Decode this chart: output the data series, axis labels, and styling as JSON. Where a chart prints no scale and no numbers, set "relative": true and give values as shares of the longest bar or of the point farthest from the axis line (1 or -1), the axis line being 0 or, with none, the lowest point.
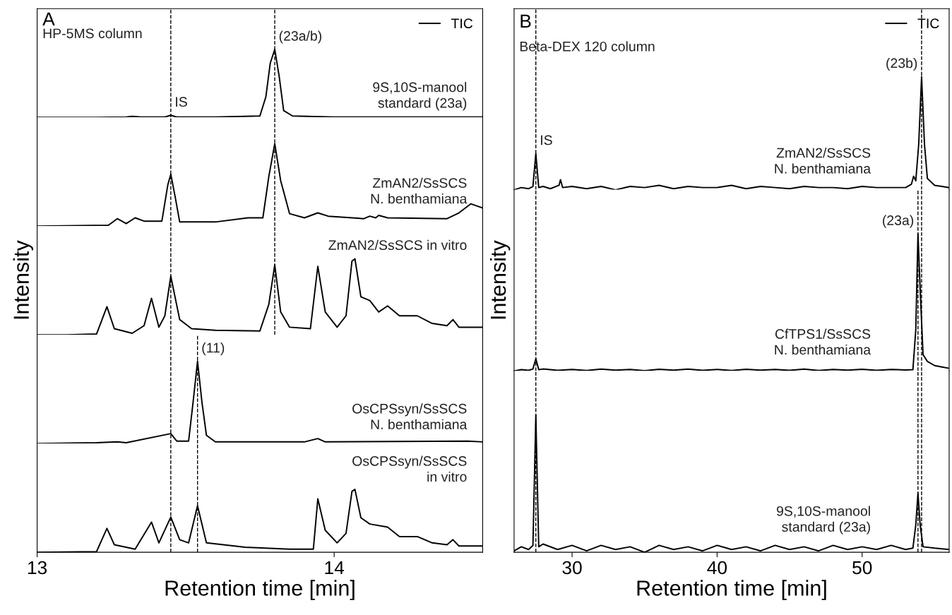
{
  "chart_data": [
    {
      "type": "line",
      "title": "A",
      "subtitle": "HP-5MS column",
      "relative": true,
      "xlim": [
        13.0,
        14.5
      ],
      "xticks": [
        13,
        14
      ],
      "tick_labels": false,
      "legend": "top right",
      "line_style": "solid",
      "x": [
        13.0,
        13.2,
        13.3,
        13.32,
        13.35,
        13.43,
        13.45,
        13.47,
        13.6,
        13.75,
        13.77,
        13.785,
        13.8,
        13.815,
        13.83,
        13.86,
        14.0,
        14.5
      ],
      "series": [
        {
          "name": "TIC",
          "color": "#000000",
          "values": [
            0,
            0,
            0.005,
            0.015,
            0.005,
            0.005,
            0.03,
            0.005,
            0.005,
            0.02,
            0.3,
            0.8,
            1,
            0.6,
            0.1,
            0.02,
            0.005,
            0.005
          ]
        }
      ],
      "ref_lines": [
        {
          "axis": "x",
          "value": 13.45,
          "color": "#000000",
          "line_style": "dashed"
        },
        {
          "axis": "x",
          "value": 13.8,
          "color": "#000000",
          "line_style": "dashed"
        }
      ],
      "annotations": [
        "9S,10S-manool\nstandard (23a)",
        {
          "text": "IS",
          "x": 13.45,
          "y": 0.03
        },
        {
          "text": "(23a/b)",
          "x": 13.8,
          "y": 1
        }
      ]
    },
    {
      "type": "line",
      "relative": true,
      "xlim": [
        13.0,
        14.5
      ],
      "xticks": [
        13,
        14
      ],
      "tick_labels": false,
      "line_style": "solid",
      "x": [
        13.0,
        13.24,
        13.27,
        13.3,
        13.33,
        13.36,
        13.42,
        13.44,
        13.45,
        13.465,
        13.48,
        13.6,
        13.71,
        13.76,
        13.78,
        13.8,
        13.82,
        13.85,
        13.9,
        13.945,
        13.98,
        14.1,
        14.12,
        14.14,
        14.15,
        14.18,
        14.38,
        14.42,
        14.46,
        14.5
      ],
      "series": [
        {
          "color": "#000000",
          "values": [
            0,
            0.01,
            0.09,
            0.03,
            0.1,
            0.06,
            0.06,
            0.5,
            0.63,
            0.35,
            0.05,
            0.05,
            0.1,
            0.1,
            0.6,
            1,
            0.55,
            0.15,
            0.1,
            0.16,
            0.12,
            0.09,
            0.12,
            0.1,
            0.13,
            0.1,
            0.09,
            0.16,
            0.27,
            0.22
          ]
        }
      ],
      "ref_lines": [
        {
          "axis": "x",
          "value": 13.45,
          "color": "#000000",
          "line_style": "dashed"
        },
        {
          "axis": "x",
          "value": 13.8,
          "color": "#000000",
          "line_style": "dashed"
        }
      ],
      "annotations": [
        "ZmAN2/SsSCS\nN. benthamiana"
      ]
    },
    {
      "type": "line",
      "relative": true,
      "xlim": [
        13.0,
        14.5
      ],
      "xticks": [
        13,
        14
      ],
      "tick_labels": false,
      "ylabel": "Intensity",
      "line_style": "solid",
      "x": [
        13.0,
        13.1,
        13.2,
        13.235,
        13.26,
        13.32,
        13.36,
        13.385,
        13.41,
        13.43,
        13.45,
        13.48,
        13.52,
        13.6,
        13.75,
        13.78,
        13.8,
        13.82,
        13.85,
        13.92,
        13.945,
        13.97,
        14.01,
        14.04,
        14.06,
        14.07,
        14.09,
        14.12,
        14.15,
        14.18,
        14.22,
        14.28,
        14.33,
        14.38,
        14.4,
        14.42,
        14.5
      ],
      "series": [
        {
          "color": "#000000",
          "values": [
            0,
            0,
            0.01,
            0.37,
            0.08,
            0.02,
            0.12,
            0.48,
            0.1,
            0.25,
            0.77,
            0.2,
            0.08,
            0.06,
            0.05,
            0.4,
            0.92,
            0.3,
            0.1,
            0.08,
            0.9,
            0.3,
            0.1,
            0.25,
            0.97,
            1,
            0.5,
            0.45,
            0.3,
            0.38,
            0.25,
            0.25,
            0.15,
            0.12,
            0.2,
            0.1,
            0.1
          ]
        }
      ],
      "ref_lines": [
        {
          "axis": "x",
          "value": 13.45,
          "color": "#000000",
          "line_style": "dashed"
        },
        {
          "axis": "x",
          "value": 13.8,
          "color": "#000000",
          "line_style": "dashed"
        }
      ],
      "annotations": [
        "ZmAN2/SsSCS in vitro"
      ]
    },
    {
      "type": "line",
      "relative": true,
      "xlim": [
        13.0,
        14.5
      ],
      "xticks": [
        13,
        14
      ],
      "tick_labels": false,
      "line_style": "solid",
      "x": [
        13.0,
        13.2,
        13.27,
        13.3,
        13.45,
        13.47,
        13.51,
        13.525,
        13.54,
        13.555,
        13.57,
        13.6,
        13.9,
        13.945,
        13.97,
        14.45,
        14.5
      ],
      "series": [
        {
          "color": "#000000",
          "values": [
            0,
            0.01,
            0.02,
            0.01,
            0.12,
            0.03,
            0.03,
            0.5,
            1,
            0.5,
            0.1,
            0.02,
            0.02,
            0.06,
            0.02,
            0.03,
            0.02
          ]
        }
      ],
      "ref_lines": [
        {
          "axis": "x",
          "value": 13.45,
          "color": "#000000",
          "line_style": "dashed"
        },
        {
          "axis": "x",
          "value": 13.54,
          "color": "#000000",
          "line_style": "dashed"
        }
      ],
      "annotations": [
        "OsCPSsyn/SsSCS\nN. benthamiana",
        {
          "text": "(11)",
          "x": 13.54,
          "y": 1
        }
      ]
    },
    {
      "type": "line",
      "relative": true,
      "xlim": [
        13.0,
        14.5
      ],
      "xticks": [
        13,
        14
      ],
      "tick_labels": "x",
      "xlabel": "Retention time [min]",
      "line_style": "solid",
      "x": [
        13.0,
        13.2,
        13.235,
        13.26,
        13.33,
        13.385,
        13.41,
        13.45,
        13.48,
        13.51,
        13.54,
        13.57,
        13.7,
        13.85,
        13.93,
        13.945,
        13.97,
        14.01,
        14.04,
        14.06,
        14.07,
        14.09,
        14.12,
        14.18,
        14.22,
        14.28,
        14.33,
        14.38,
        14.4,
        14.42,
        14.5
      ],
      "series": [
        {
          "color": "#000000",
          "values": [
            0,
            0.01,
            0.38,
            0.12,
            0.05,
            0.48,
            0.15,
            0.56,
            0.2,
            0.15,
            0.74,
            0.15,
            0.08,
            0.05,
            0.05,
            0.85,
            0.35,
            0.15,
            0.3,
            0.97,
            1,
            0.55,
            0.45,
            0.4,
            0.25,
            0.25,
            0.15,
            0.12,
            0.2,
            0.1,
            0.1
          ]
        }
      ],
      "ref_lines": [
        {
          "axis": "x",
          "value": 13.45,
          "color": "#000000",
          "line_style": "dashed"
        },
        {
          "axis": "x",
          "value": 13.54,
          "color": "#000000",
          "line_style": "dashed"
        }
      ],
      "annotations": [
        "OsCPSsyn/SsSCS\n in vitro"
      ]
    },
    {
      "type": "line",
      "title": "B",
      "subtitle": "Beta-DEX 120 column",
      "relative": true,
      "xlim": [
        26,
        56
      ],
      "xticks": [
        30,
        40,
        50
      ],
      "tick_labels": false,
      "legend": "top right",
      "line_style": "solid",
      "x": [
        26,
        26.5,
        27,
        27.3,
        27.5,
        27.7,
        28,
        28.5,
        29.1,
        29.2,
        29.35,
        30,
        31,
        32,
        33,
        34,
        35,
        36,
        37,
        38,
        39,
        40,
        41,
        42,
        43,
        44,
        45,
        46,
        47,
        48,
        49,
        50,
        51,
        52,
        53,
        53.4,
        53.55,
        53.7,
        53.9,
        54.1,
        54.3,
        54.5,
        55,
        55.5,
        56
      ],
      "series": [
        {
          "name": "TIC",
          "color": "#000000",
          "values": [
            0,
            0.02,
            0.01,
            0.03,
            0.32,
            0.02,
            0.03,
            0.01,
            0.04,
            0.09,
            0.02,
            0.03,
            0.01,
            0.03,
            0,
            0.03,
            0.02,
            0.04,
            0.01,
            0.03,
            0.02,
            0.02,
            0.04,
            0.01,
            0.03,
            0.02,
            0.01,
            0.03,
            0.02,
            0.02,
            0.01,
            0.03,
            0.02,
            0.02,
            0.02,
            0.05,
            0.12,
            0.08,
            0.4,
            1,
            0.4,
            0.1,
            0.04,
            0.03,
            0.02
          ]
        }
      ],
      "ref_lines": [
        {
          "axis": "x",
          "value": 27.5,
          "color": "#000000",
          "line_style": "dashed"
        },
        {
          "axis": "x",
          "value": 54.1,
          "color": "#000000",
          "line_style": "dashed"
        }
      ],
      "annotations": [
        "ZmAN2/SsSCS\nN. benthamiana",
        {
          "text": "IS",
          "x": 27.5,
          "y": 0.32
        },
        {
          "text": "(23b)",
          "x": 54.1,
          "y": 1
        }
      ]
    },
    {
      "type": "line",
      "relative": true,
      "xlim": [
        26,
        56
      ],
      "xticks": [
        30,
        40,
        50
      ],
      "tick_labels": false,
      "ylabel": "Intensity",
      "line_style": "solid",
      "x": [
        26,
        26.5,
        27,
        27.3,
        27.5,
        27.7,
        28,
        29,
        30,
        31,
        32,
        33,
        34,
        35,
        36,
        37,
        38,
        39,
        40,
        41,
        42,
        43,
        44,
        45,
        46,
        47,
        48,
        49,
        50,
        51,
        52,
        53,
        53.5,
        53.7,
        53.85,
        54.0,
        54.2,
        54.5,
        55,
        55.5,
        56
      ],
      "series": [
        {
          "color": "#000000",
          "values": [
            0,
            0.01,
            0.005,
            0.015,
            0.09,
            0.01,
            0.015,
            0.005,
            0.012,
            0.004,
            0.014,
            0.006,
            0.012,
            0.003,
            0.013,
            0.006,
            0.014,
            0.005,
            0.012,
            0.004,
            0.013,
            0.006,
            0.012,
            0.005,
            0.014,
            0.004,
            0.012,
            0.006,
            0.013,
            0.005,
            0.012,
            0.008,
            0.01,
            0.3,
            1,
            0.6,
            0.12,
            0.07,
            0.04,
            0.03,
            0.02
          ]
        }
      ],
      "ref_lines": [
        {
          "axis": "x",
          "value": 27.5,
          "color": "#000000",
          "line_style": "dashed"
        },
        {
          "axis": "x",
          "value": 53.85,
          "color": "#000000",
          "line_style": "dashed"
        },
        {
          "axis": "x",
          "value": 54.1,
          "color": "#000000",
          "line_style": "dashed"
        }
      ],
      "annotations": [
        "CfTPS1/SsSCS\nN. benthamiana",
        {
          "text": "(23a)",
          "x": 53.85,
          "y": 1
        }
      ]
    },
    {
      "type": "line",
      "relative": true,
      "xlim": [
        26,
        56
      ],
      "xticks": [
        30,
        40,
        50
      ],
      "tick_labels": "x",
      "xlabel": "Retention time [min]",
      "line_style": "solid",
      "x": [
        26,
        26.5,
        27,
        27.3,
        27.5,
        27.7,
        28,
        29,
        30,
        31,
        32,
        33,
        34,
        35,
        36,
        37,
        38,
        39,
        40,
        41,
        42,
        43,
        44,
        45,
        46,
        47,
        48,
        49,
        50,
        51,
        52,
        53,
        53.5,
        53.7,
        53.85,
        54.0,
        54.2,
        55,
        56
      ],
      "series": [
        {
          "color": "#000000",
          "values": [
            0.01,
            0.04,
            0.02,
            0.05,
            1,
            0.04,
            0.06,
            0.02,
            0.05,
            0.01,
            0.05,
            0.02,
            0.04,
            0,
            0.05,
            0.02,
            0.04,
            0.01,
            0.05,
            0.02,
            0.04,
            0.01,
            0.05,
            0.02,
            0.04,
            0.01,
            0.05,
            0.02,
            0.04,
            0.02,
            0.05,
            0.02,
            0.03,
            0.2,
            0.43,
            0.2,
            0.04,
            0.03,
            0.02
          ]
        }
      ],
      "ref_lines": [
        {
          "axis": "x",
          "value": 27.5,
          "color": "#000000",
          "line_style": "dashed"
        },
        {
          "axis": "x",
          "value": 53.85,
          "color": "#000000",
          "line_style": "dashed"
        },
        {
          "axis": "x",
          "value": 54.1,
          "color": "#000000",
          "line_style": "dashed"
        }
      ],
      "annotations": [
        "9S,10S-manool\nstandard (23a)"
      ]
    }
  ]
}
